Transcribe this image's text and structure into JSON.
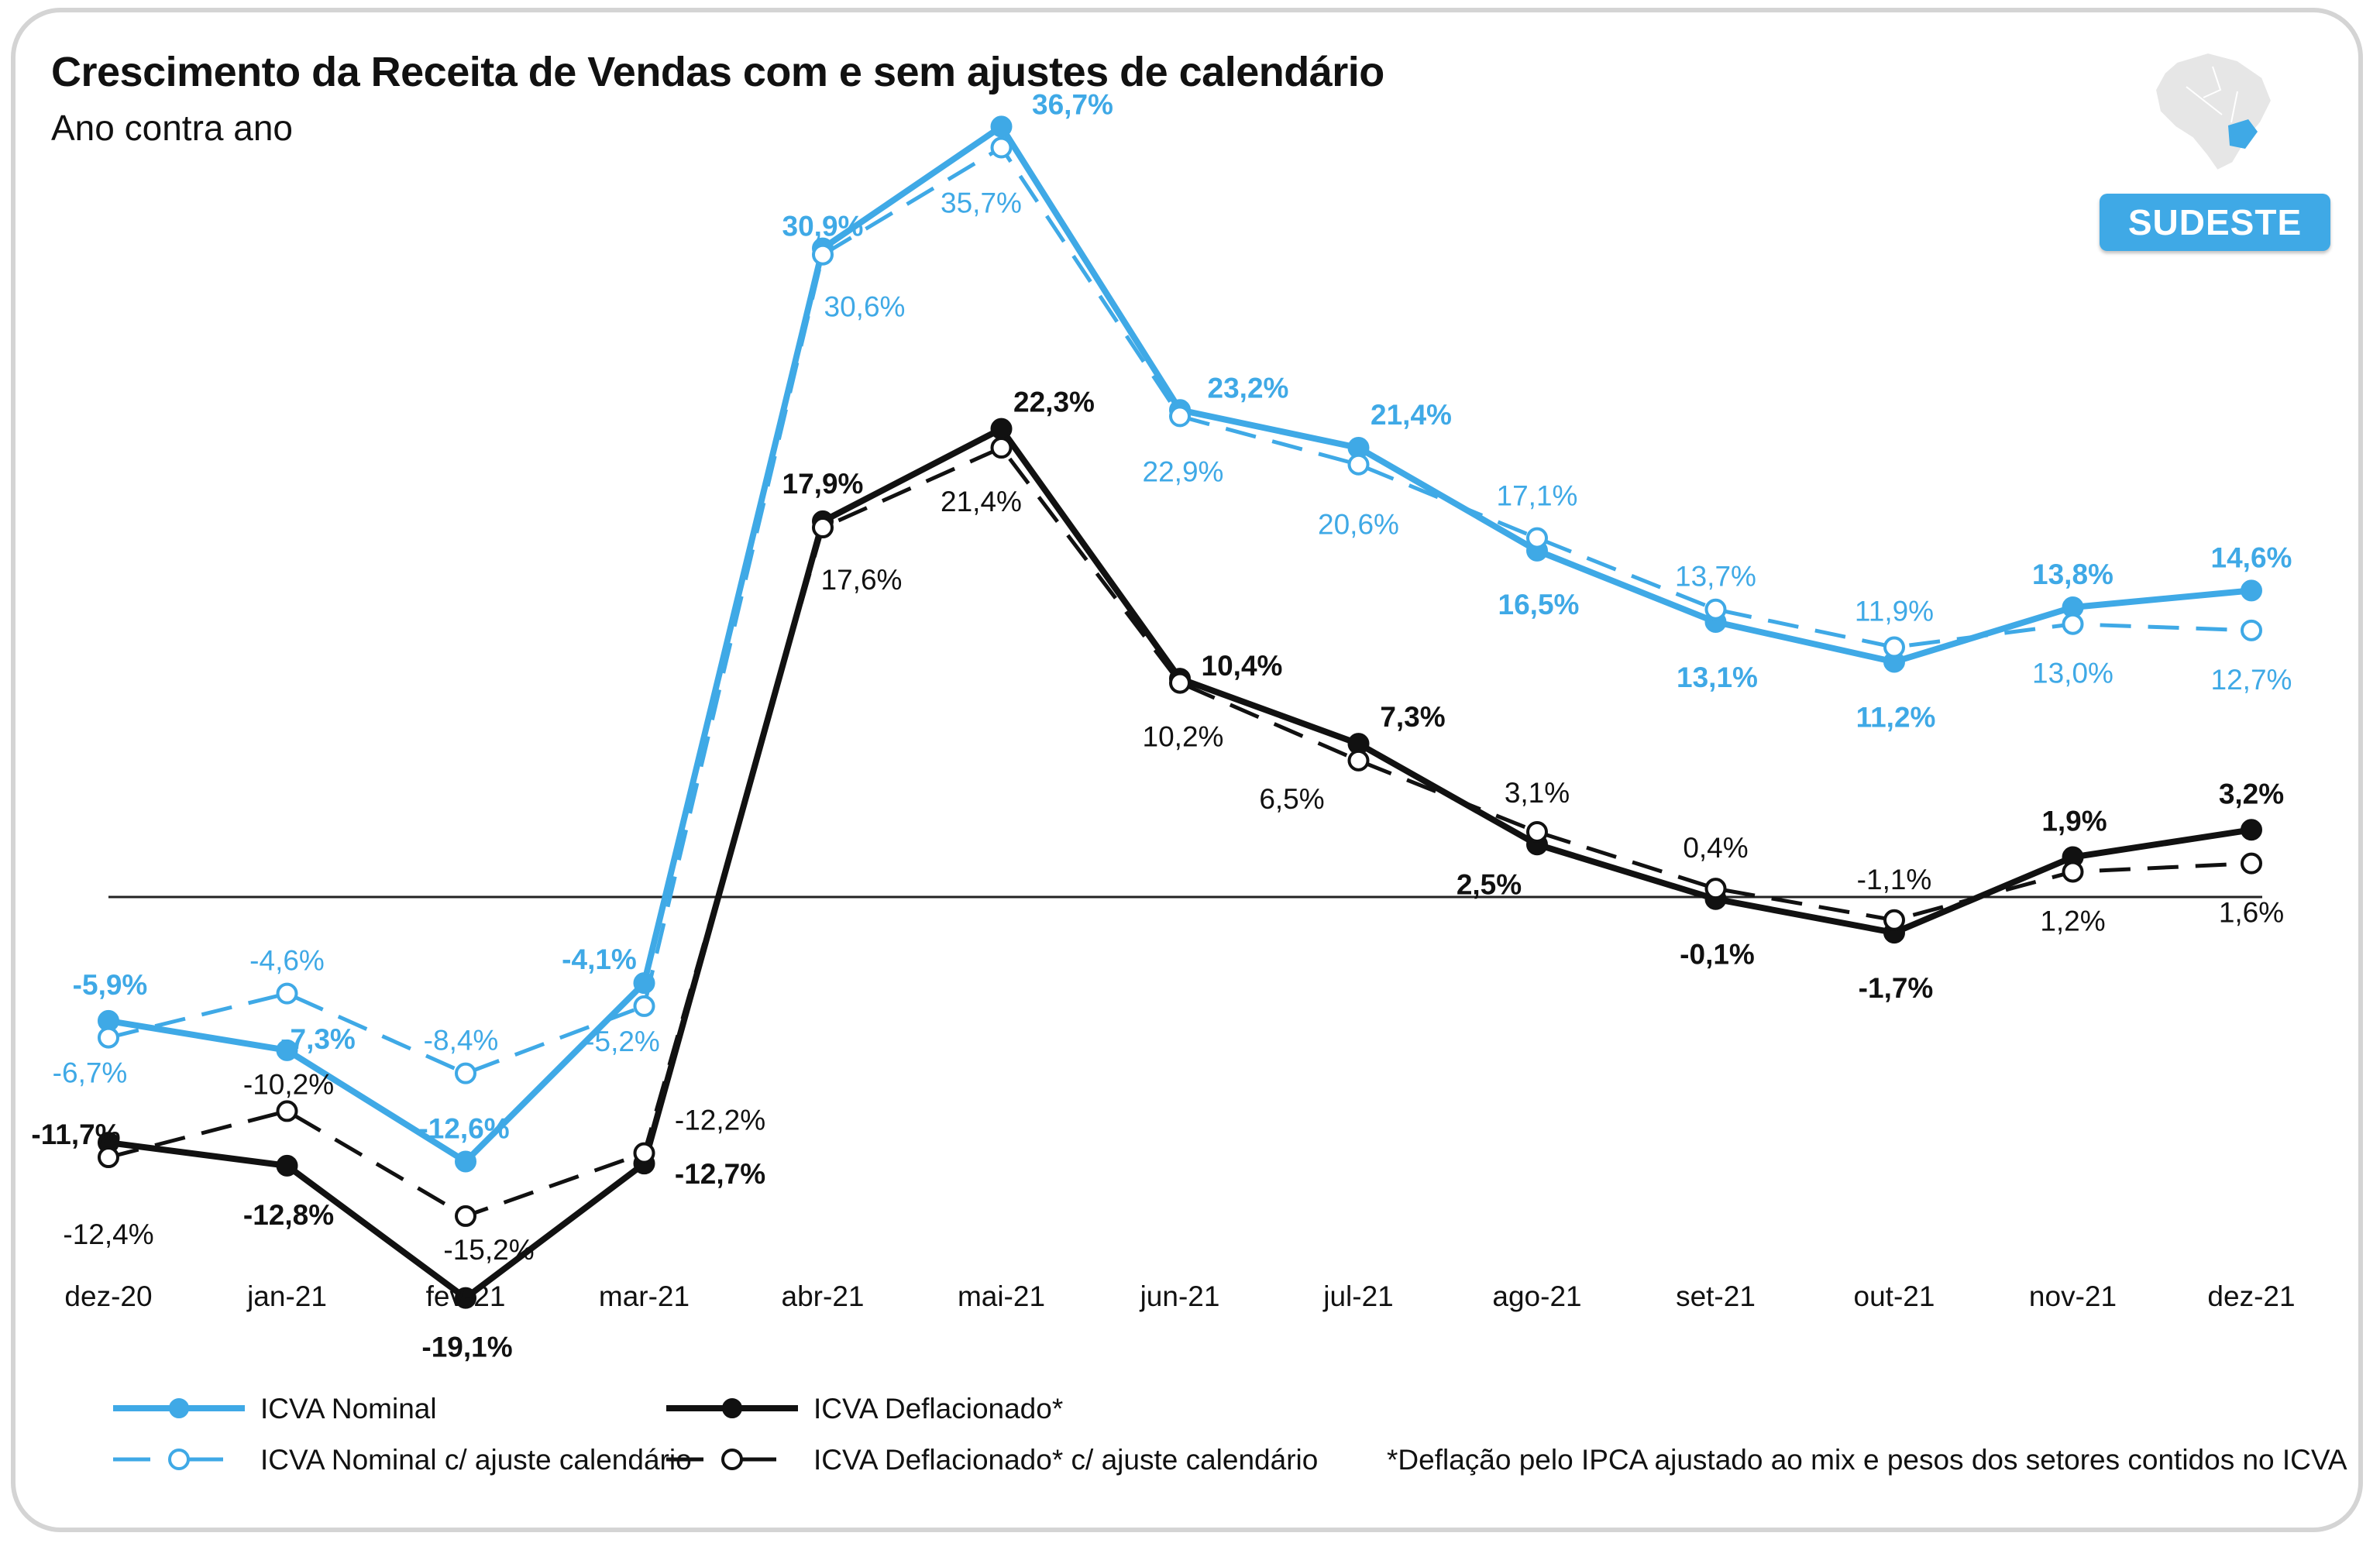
{
  "header": {
    "title": "Crescimento da Receita de Vendas com e sem ajustes de calendário",
    "subtitle": "Ano contra ano",
    "region_badge": "SUDESTE"
  },
  "footnote": "*Deflação pelo IPCA ajustado ao mix e pesos dos setores contidos no ICVA",
  "colors": {
    "nominal": "#3fa9e6",
    "deflacionado": "#111111",
    "badge": "#3fa9e6"
  },
  "icons": {
    "region_map": "brazil-map-icon"
  },
  "chart_data": {
    "type": "line",
    "title": "Crescimento da Receita de Vendas com e sem ajustes de calendário",
    "subtitle": "Ano contra ano",
    "categories": [
      "dez-20",
      "jan-21",
      "fev-21",
      "mar-21",
      "abr-21",
      "mai-21",
      "jun-21",
      "jul-21",
      "ago-21",
      "set-21",
      "out-21",
      "nov-21",
      "dez-21"
    ],
    "ylim": [
      -22,
      40
    ],
    "baseline": 0,
    "series": [
      {
        "name": "ICVA Nominal",
        "style": "solid-filled",
        "values": [
          -5.9,
          -7.3,
          -12.6,
          -4.1,
          30.9,
          36.7,
          23.2,
          21.4,
          16.5,
          13.1,
          11.2,
          13.8,
          14.6
        ],
        "labels": [
          "-5,9%",
          "-7,3%",
          "-12,6%",
          "-4,1%",
          "30,9%",
          "36,7%",
          "23,2%",
          "21,4%",
          "16,5%",
          "13,1%",
          "11,2%",
          "13,8%",
          "14,6%"
        ]
      },
      {
        "name": "ICVA Nominal c/ ajuste calendário",
        "style": "dashed-open",
        "values": [
          -6.7,
          -4.6,
          -8.4,
          -5.2,
          30.6,
          35.7,
          22.9,
          20.6,
          17.1,
          13.7,
          11.9,
          13.0,
          12.7
        ],
        "labels": [
          "-6,7%",
          "-4,6%",
          "-8,4%",
          "-5,2%",
          "30,6%",
          "35,7%",
          "22,9%",
          "20,6%",
          "17,1%",
          "13,7%",
          "11,9%",
          "13,0%",
          "12,7%"
        ]
      },
      {
        "name": "ICVA Deflacionado*",
        "style": "solid-filled",
        "values": [
          -11.7,
          -12.8,
          -19.1,
          -12.7,
          17.9,
          22.3,
          10.4,
          7.3,
          2.5,
          -0.1,
          -1.7,
          1.9,
          3.2
        ],
        "labels": [
          "-11,7%",
          "-12,8%",
          "-19,1%",
          "-12,7%",
          "17,9%",
          "22,3%",
          "10,4%",
          "7,3%",
          "2,5%",
          "-0,1%",
          "-1,7%",
          "1,9%",
          "3,2%"
        ]
      },
      {
        "name": "ICVA Deflacionado* c/ ajuste calendário",
        "style": "dashed-open",
        "values": [
          -12.4,
          -10.2,
          -15.2,
          -12.2,
          17.6,
          21.4,
          10.2,
          6.5,
          3.1,
          0.4,
          -1.1,
          1.2,
          1.6
        ],
        "labels": [
          "-12,4%",
          "-10,2%",
          "-15,2%",
          "-12,2%",
          "17,6%",
          "21,4%",
          "10,2%",
          "6,5%",
          "3,1%",
          "0,4%",
          "-1,1%",
          "1,2%",
          "1,6%"
        ]
      }
    ]
  }
}
